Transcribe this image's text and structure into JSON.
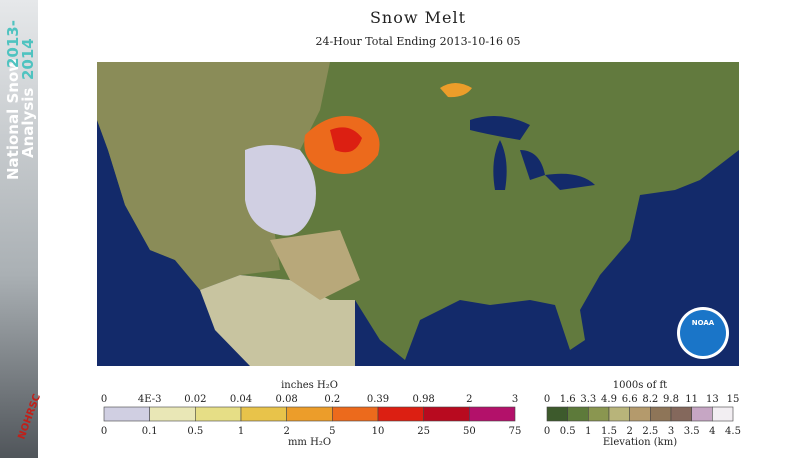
{
  "banner": {
    "line1": "National Snow",
    "line2": "Analysis",
    "year1": "2013-",
    "year2": "2014",
    "org": "NOHRSC"
  },
  "header": {
    "title": "Snow Melt",
    "subtitle": "24-Hour Total Ending 2013-10-16 05"
  },
  "logo": {
    "text": "NOAA"
  },
  "legend_melt": {
    "top_unit": "inches H₂O",
    "bottom_unit": "mm H₂O",
    "top_ticks": [
      "0",
      "4E-3",
      "0.02",
      "0.04",
      "0.08",
      "0.2",
      "0.39",
      "0.98",
      "2",
      "3"
    ],
    "bottom_ticks": [
      "0",
      "0.1",
      "0.5",
      "1",
      "2",
      "5",
      "10",
      "25",
      "50",
      "75"
    ],
    "colors": [
      "#d0cfe2",
      "#e9e7b6",
      "#e6de86",
      "#e8c34a",
      "#ec9d2a",
      "#ec6a1c",
      "#dc1f12",
      "#b80a1f",
      "#b3116a"
    ]
  },
  "legend_elev": {
    "top_unit": "1000s of ft",
    "bottom_unit": "Elevation (km)",
    "top_ticks": [
      "0",
      "1.6",
      "3.3",
      "4.9",
      "6.6",
      "8.2",
      "9.8",
      "11",
      "13",
      "15"
    ],
    "bottom_ticks": [
      "0",
      "0.5",
      "1",
      "1.5",
      "2",
      "2.5",
      "3",
      "3.5",
      "4",
      "4.5"
    ],
    "colors": [
      "#3d5a2c",
      "#5d7a3a",
      "#8a9650",
      "#b8b47a",
      "#b49a6c",
      "#8e7558",
      "#84685c",
      "#c6a6c4",
      "#f2eef2"
    ]
  }
}
